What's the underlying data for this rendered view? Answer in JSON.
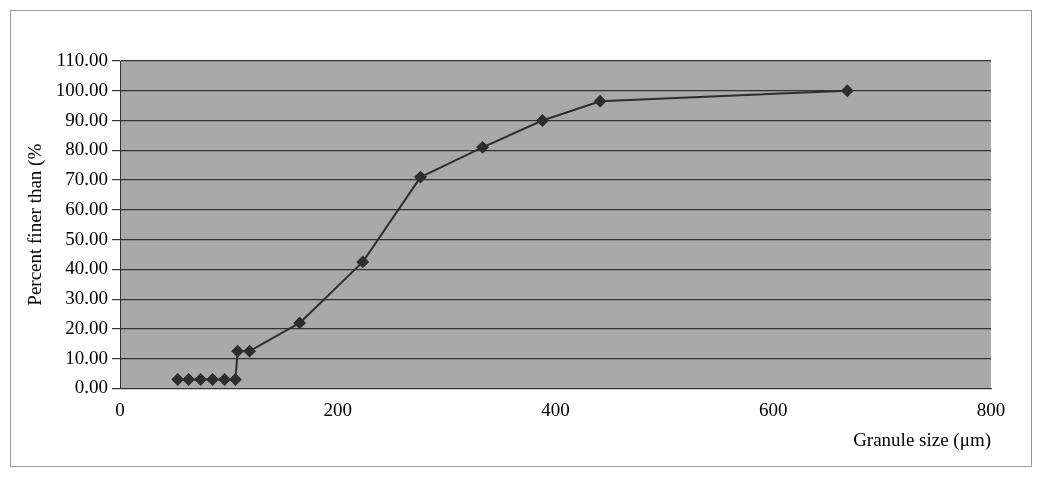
{
  "chart_data": {
    "type": "line",
    "xlabel": "Granule size (μm)",
    "ylabel": "Percent finer than (%",
    "series": [
      {
        "color": "#2e2e2e",
        "x": [
          53,
          63,
          74,
          85,
          96,
          106,
          108,
          119,
          165,
          223,
          276,
          333,
          388,
          441,
          668
        ],
        "values": [
          3,
          3,
          3,
          3,
          3,
          3,
          12.5,
          12.5,
          22,
          42.5,
          71,
          81,
          90,
          96.5,
          100
        ]
      }
    ],
    "xlim": [
      0,
      800
    ],
    "xticks": [
      0,
      200,
      400,
      600,
      800
    ],
    "ylim": [
      0,
      110
    ],
    "yticks": [
      {
        "value": 0,
        "label": "0.00"
      },
      {
        "value": 10,
        "label": "10.00"
      },
      {
        "value": 20,
        "label": "20.00"
      },
      {
        "value": 30,
        "label": "30.00"
      },
      {
        "value": 40,
        "label": "40.00"
      },
      {
        "value": 50,
        "label": "50.00"
      },
      {
        "value": 60,
        "label": "60.00"
      },
      {
        "value": 70,
        "label": "70.00"
      },
      {
        "value": 80,
        "label": "80.00"
      },
      {
        "value": 90,
        "label": "90.00"
      },
      {
        "value": 100,
        "label": "100.00"
      },
      {
        "value": 110,
        "label": "110.00"
      }
    ],
    "grid": "y",
    "legend": false,
    "marker": "diamond",
    "line_style": "solid"
  }
}
